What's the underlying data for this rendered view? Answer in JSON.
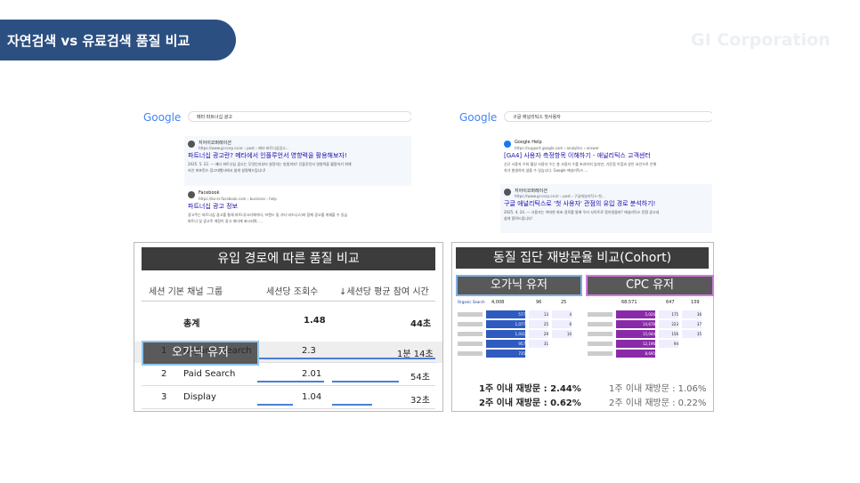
{
  "header": {
    "title": "자연검색 vs 유료검색 품질 비교",
    "brand": "GI Corporation"
  },
  "left_search": {
    "logo": "Google",
    "query": "메타 파트너십 광고",
    "results": [
      {
        "site": "지아이코퍼레이션",
        "url": "https://www.gi-corp.co.kr › post › 메타-파트너십광고...",
        "title": "파트너십 광고란? 메타에서 인플루언서 영향력을 활용해보자!",
        "snippet": [
          "2025. 5. 22. — 메타 파트너십 광고는 무엇인지부터 설정하는 방법까지! 인플루언서 영향력을 활용하기 위해",
          "라인 퍼포먼스 광고대행사에서 쉽게 설명해드립니다!"
        ]
      },
      {
        "site": "Facebook",
        "url": "https://ko-kr.facebook.com › business › help",
        "title": "파트너십 광고 정보",
        "snippet": [
          "광고주는 파트너십 광고를 통해 파트너(크리에이터, 브랜드 및 기타 비즈니스)와 함께 광고를 게재할 수 있습",
          "파트너 및 광고주 계정이 광고 헤더에 표시되며, ..."
        ]
      }
    ]
  },
  "right_search": {
    "logo": "Google",
    "query": "구글 애널리틱스 첫사용자",
    "results": [
      {
        "site": "Google Help",
        "url": "https://support.google.com › analytics › answer",
        "title": "[GA4] 사용자 측정항목 이해하기 - 애널리틱스 고객센터",
        "snippet": [
          "신규 사용자 수와 활성 사용자 수는 총 사용자 수를 초과하지 않지만, 기준점 이점과 같은 요인으로 인해",
          "차가 발생하지 않을 수 있습니다. Google 애널리틱스 ..."
        ]
      },
      {
        "site": "지아이코퍼레이션",
        "url": "https://www.gi-corp.co.kr › post › 구글애널리틱스-첫...",
        "title": "구글 애널리틱스로 '첫 사용자' 관점의 유입 경로 분석하기!",
        "snippet": [
          "2025. 4. 24. — 사용자는 어떠한 최초 경로를 통해 우리 사이트로 찾아왔을까? 애널리틱스 전환 광고내",
          "쉽게 알려드립니다!"
        ]
      }
    ]
  },
  "quality_table": {
    "title": "유입 경로에 따른 품질 비교",
    "columns": [
      "세션 기본 채널 그룹",
      "세션당 조회수",
      "↓세션당 평균 참여 시간"
    ],
    "total": {
      "label": "총계",
      "views": "1.48",
      "time": "44초"
    },
    "rows": [
      [
        "1",
        "Organic Search",
        "2.3",
        "1분 14초"
      ],
      [
        "2",
        "Paid Search",
        "2.01",
        "54초"
      ],
      [
        "3",
        "Display",
        "1.04",
        "32초"
      ]
    ],
    "highlight": "오가닉 유저"
  },
  "cohort": {
    "title": "동질 집단 재방문율 비교(Cohort)",
    "organic": {
      "label": "오가닉 유저",
      "segment": "Organic Search",
      "header": [
        "4,008",
        "96",
        "25"
      ],
      "cells": [
        [
          "577",
          "13",
          "4"
        ],
        [
          "1,077",
          "25",
          "6"
        ],
        [
          "1,031",
          "29",
          "10"
        ],
        [
          "957",
          "31"
        ],
        [
          "735"
        ]
      ],
      "stats": [
        "1주 이내 재방문 : 2.44%",
        "2주 이내 재방문 : 0.62%"
      ]
    },
    "cpc": {
      "label": "CPC 유저",
      "header": [
        "68,571",
        "647",
        "139"
      ],
      "cells": [
        [
          "5,026",
          "175",
          "36"
        ],
        [
          "14,678",
          "223",
          "37"
        ],
        [
          "15,044",
          "156",
          "35"
        ],
        [
          "12,196",
          "94"
        ],
        [
          "8,695"
        ]
      ],
      "stats": [
        "1주 이내 재방문 : 1.06%",
        "2주 이내 재방문 : 0.22%"
      ]
    }
  }
}
